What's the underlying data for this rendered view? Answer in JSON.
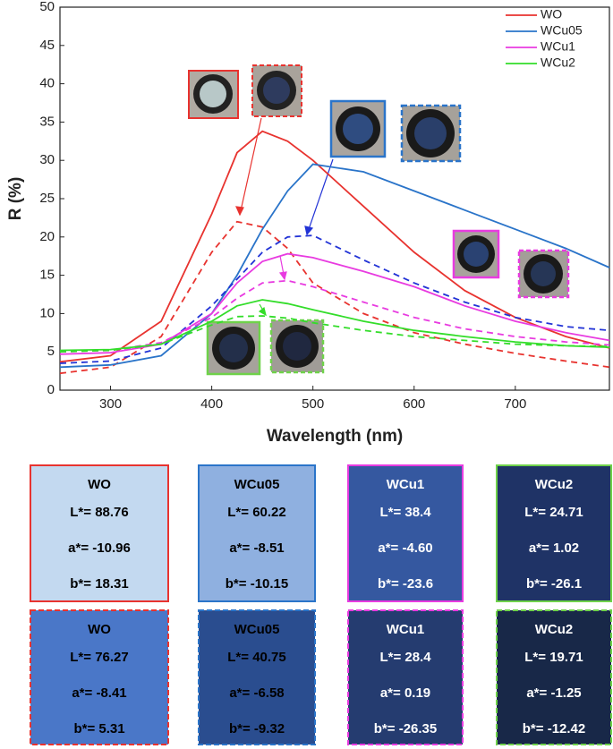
{
  "chart_data": {
    "type": "line",
    "x_label": "Wavelength (nm)",
    "y_label": "R (%)",
    "x": [
      250,
      300,
      350,
      400,
      425,
      450,
      475,
      500,
      550,
      600,
      650,
      700,
      750,
      793
    ],
    "xlim": [
      250,
      793
    ],
    "ylim": [
      0,
      50
    ],
    "xticks": [
      300,
      400,
      500,
      600,
      700
    ],
    "yticks": [
      0,
      5,
      10,
      15,
      20,
      25,
      30,
      35,
      40,
      45,
      50
    ],
    "legend": "top-right",
    "series": [
      {
        "name": "WO",
        "color": "#e8332f",
        "values": [
          3.7,
          4.5,
          9,
          23,
          31,
          33.8,
          32.5,
          30,
          24,
          18,
          13,
          9.5,
          7,
          5.5
        ]
      },
      {
        "color": "#e8332f",
        "dash": true,
        "values": [
          2.2,
          3,
          7,
          18,
          22,
          21.3,
          18.5,
          14,
          10,
          7.5,
          6,
          4.8,
          3.8,
          3
        ]
      },
      {
        "name": "WCu05",
        "color": "#2a74c9",
        "values": [
          3,
          3.3,
          4.5,
          10,
          15,
          21,
          26,
          29.5,
          28.5,
          26,
          23.5,
          21,
          18.5,
          16
        ]
      },
      {
        "color": "#2233d6",
        "dash": true,
        "values": [
          3.5,
          3.8,
          5.5,
          11,
          14.5,
          18,
          20,
          20.2,
          17,
          14,
          11.5,
          9.5,
          8.3,
          7.8
        ]
      },
      {
        "name": "WCu1",
        "color": "#e83be0",
        "values": [
          4.7,
          4.9,
          6,
          10,
          14,
          16.8,
          17.8,
          17.3,
          15.5,
          13.5,
          11,
          9,
          7.5,
          6.5
        ]
      },
      {
        "color": "#e83be0",
        "dash": true,
        "values": [
          5,
          5.2,
          6.2,
          9.5,
          12,
          14,
          14.3,
          13.5,
          11.5,
          9.5,
          8,
          7,
          6.3,
          5.9
        ]
      },
      {
        "name": "WCu2",
        "color": "#33dd2a",
        "values": [
          5.2,
          5.3,
          6,
          9,
          11,
          11.8,
          11.3,
          10.5,
          9,
          7.8,
          7,
          6.3,
          5.8,
          5.6
        ]
      },
      {
        "color": "#33dd2a",
        "dash": true,
        "values": [
          5,
          5.2,
          6,
          8.5,
          9.6,
          9.7,
          9.4,
          8.8,
          7.8,
          7,
          6.5,
          6,
          5.8,
          5.7
        ]
      }
    ]
  },
  "color_panels": [
    {
      "title": "WO",
      "lines": [
        "L*= 88.76",
        "a*= -10.96",
        "b*= 18.31"
      ],
      "fill": "#c3d9f0",
      "border": "#e8332f",
      "text": "#000",
      "dashed": false
    },
    {
      "title": "WCu05",
      "lines": [
        "L*= 60.22",
        "a*= -8.51",
        "b*= -10.15"
      ],
      "fill": "#8fb0e0",
      "border": "#2a74c9",
      "text": "#000",
      "dashed": false
    },
    {
      "title": "WCu1",
      "lines": [
        "L*= 38.4",
        "a*= -4.60",
        "b*= -23.6"
      ],
      "fill": "#3558a0",
      "border": "#e83be0",
      "text": "#fff",
      "dashed": false
    },
    {
      "title": "WCu2",
      "lines": [
        "L*= 24.71",
        "a*= 1.02",
        "b*= -26.1"
      ],
      "fill": "#1f3366",
      "border": "#6fd24a",
      "text": "#fff",
      "dashed": false
    },
    {
      "title": "WO",
      "lines": [
        "L*= 76.27",
        "a*= -8.41",
        "b*= 5.31"
      ],
      "fill": "#4a77c8",
      "border": "#e8332f",
      "text": "#000",
      "dashed": true
    },
    {
      "title": "WCu05",
      "lines": [
        "L*= 40.75",
        "a*= -6.58",
        "b*= -9.32"
      ],
      "fill": "#2a4d8f",
      "border": "#2a74c9",
      "text": "#000",
      "dashed": true
    },
    {
      "title": "WCu1",
      "lines": [
        "L*= 28.4",
        "a*= 0.19",
        "b*= -26.35"
      ],
      "fill": "#253c70",
      "border": "#e83be0",
      "text": "#fff",
      "dashed": true
    },
    {
      "title": "WCu2",
      "lines": [
        "L*= 19.71",
        "a*= -1.25",
        "b*= -12.42"
      ],
      "fill": "#182848",
      "border": "#6fd24a",
      "text": "#fff",
      "dashed": true
    }
  ]
}
